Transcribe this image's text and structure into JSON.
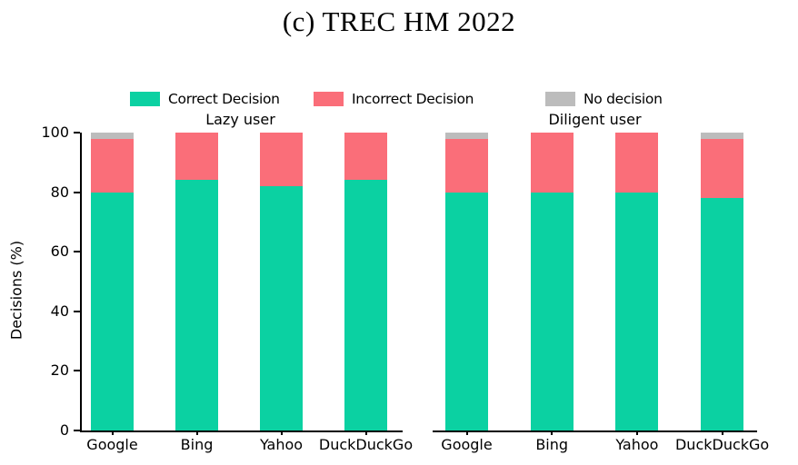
{
  "figure": {
    "title": "(c) TREC HM 2022"
  },
  "chart_data": {
    "type": "bar",
    "stacked": true,
    "title": "(c) TREC HM 2022",
    "ylabel": "Decisions (%)",
    "ylim": [
      0,
      100
    ],
    "yticks": [
      0,
      20,
      40,
      60,
      80,
      100
    ],
    "grid": false,
    "legend_position": "top",
    "legend": [
      {
        "label": "Correct Decision",
        "color": "#0bd1a2"
      },
      {
        "label": "Incorrect Decision",
        "color": "#fa6e79"
      },
      {
        "label": "No decision",
        "color": "#bcbcbc"
      }
    ],
    "categories": [
      "Google",
      "Bing",
      "Yahoo",
      "DuckDuckGo"
    ],
    "subplots": [
      {
        "title": "Lazy user",
        "series": [
          {
            "name": "Correct Decision",
            "color": "#0bd1a2",
            "values": [
              80,
              84,
              82,
              84
            ]
          },
          {
            "name": "Incorrect Decision",
            "color": "#fa6e79",
            "values": [
              18,
              16,
              18,
              16
            ]
          },
          {
            "name": "No decision",
            "color": "#bcbcbc",
            "values": [
              2,
              0,
              0,
              0
            ]
          }
        ]
      },
      {
        "title": "Diligent user",
        "series": [
          {
            "name": "Correct Decision",
            "color": "#0bd1a2",
            "values": [
              80,
              80,
              80,
              78
            ]
          },
          {
            "name": "Incorrect Decision",
            "color": "#fa6e79",
            "values": [
              18,
              20,
              20,
              20
            ]
          },
          {
            "name": "No decision",
            "color": "#bcbcbc",
            "values": [
              2,
              0,
              0,
              2
            ]
          }
        ]
      }
    ]
  }
}
